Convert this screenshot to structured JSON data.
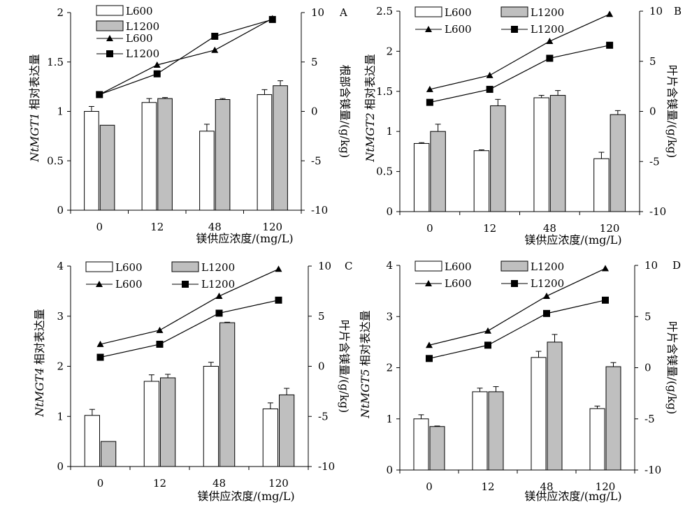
{
  "x_axis_title": "镁供应浓度/(mg/L)",
  "chart_data": [
    {
      "type": "bar",
      "panel_letter": "A",
      "categories": [
        "0",
        "12",
        "48",
        "120"
      ],
      "ylabel_gene": "NtMGT1",
      "ylabel_suffix": "相对表达量",
      "y2label": "根部含镁量/(g/kg)",
      "ylim": [
        0,
        2
      ],
      "yticks": [
        "0",
        "0.5",
        "1",
        "1.5",
        "2"
      ],
      "y2lim": [
        -10,
        10
      ],
      "y2ticks": [
        "-10",
        "-5",
        "0",
        "5",
        "10"
      ],
      "bars": [
        {
          "name": "L600",
          "values": [
            1.0,
            1.09,
            0.8,
            1.17
          ],
          "errors": [
            0.05,
            0.04,
            0.07,
            0.05
          ]
        },
        {
          "name": "L1200",
          "values": [
            0.86,
            1.13,
            1.12,
            1.26
          ],
          "errors": [
            0.0,
            0.01,
            0.01,
            0.05
          ]
        }
      ],
      "lines": [
        {
          "name": "L600",
          "marker": "triangle",
          "values": [
            1.7,
            4.7,
            6.2,
            9.4
          ]
        },
        {
          "name": "L1200",
          "marker": "square",
          "values": [
            1.7,
            3.8,
            7.6,
            9.3
          ]
        }
      ]
    },
    {
      "type": "bar",
      "panel_letter": "B",
      "categories": [
        "0",
        "12",
        "48",
        "120"
      ],
      "ylabel_gene": "NtMGT2",
      "ylabel_suffix": "相对表达量",
      "y2label": "叶片含镁量/(g/kg)",
      "ylim": [
        0,
        2.5
      ],
      "yticks": [
        "0",
        "0.5",
        "1",
        "1.5",
        "2",
        "2.5"
      ],
      "y2lim": [
        -10,
        10
      ],
      "y2ticks": [
        "-10",
        "-5",
        "0",
        "5",
        "10"
      ],
      "bars": [
        {
          "name": "L600",
          "values": [
            0.85,
            0.76,
            1.42,
            0.66
          ],
          "errors": [
            0.01,
            0.01,
            0.03,
            0.08
          ]
        },
        {
          "name": "L1200",
          "values": [
            1.0,
            1.32,
            1.45,
            1.21
          ],
          "errors": [
            0.09,
            0.08,
            0.06,
            0.05
          ]
        }
      ],
      "lines": [
        {
          "name": "L600",
          "marker": "triangle",
          "values": [
            2.2,
            3.6,
            7.0,
            9.7
          ]
        },
        {
          "name": "L1200",
          "marker": "square",
          "values": [
            0.9,
            2.2,
            5.3,
            6.6
          ]
        }
      ]
    },
    {
      "type": "bar",
      "panel_letter": "C",
      "categories": [
        "0",
        "12",
        "48",
        "120"
      ],
      "ylabel_gene": "NtMGT4",
      "ylabel_suffix": "相对表达量",
      "y2label": "叶片含镁量/(g/kg)",
      "ylim": [
        0,
        4
      ],
      "yticks": [
        "0",
        "1",
        "2",
        "3",
        "4"
      ],
      "y2lim": [
        -10,
        10
      ],
      "y2ticks": [
        "-10",
        "-5",
        "0",
        "5",
        "10"
      ],
      "bars": [
        {
          "name": "L600",
          "values": [
            1.02,
            1.7,
            2.0,
            1.15
          ],
          "errors": [
            0.12,
            0.13,
            0.08,
            0.12
          ]
        },
        {
          "name": "L1200",
          "values": [
            0.5,
            1.77,
            2.87,
            1.43
          ],
          "errors": [
            0.0,
            0.07,
            0.01,
            0.13
          ]
        }
      ],
      "lines": [
        {
          "name": "L600",
          "marker": "triangle",
          "values": [
            2.2,
            3.6,
            7.0,
            9.7
          ]
        },
        {
          "name": "L1200",
          "marker": "square",
          "values": [
            0.9,
            2.2,
            5.3,
            6.6
          ]
        }
      ]
    },
    {
      "type": "bar",
      "panel_letter": "D",
      "categories": [
        "0",
        "12",
        "48",
        "120"
      ],
      "ylabel_gene": "NtMGT5",
      "ylabel_suffix": "相对表达量",
      "y2label": "叶片含镁量/(g/kg)",
      "ylim": [
        0,
        4
      ],
      "yticks": [
        "0",
        "1",
        "2",
        "3",
        "4"
      ],
      "y2lim": [
        -10,
        10
      ],
      "y2ticks": [
        "-10",
        "-5",
        "0",
        "5",
        "10"
      ],
      "bars": [
        {
          "name": "L600",
          "values": [
            1.0,
            1.53,
            2.2,
            1.2
          ],
          "errors": [
            0.08,
            0.07,
            0.12,
            0.05
          ]
        },
        {
          "name": "L1200",
          "values": [
            0.85,
            1.53,
            2.5,
            2.02
          ],
          "errors": [
            0.01,
            0.1,
            0.15,
            0.08
          ]
        }
      ],
      "lines": [
        {
          "name": "L600",
          "marker": "triangle",
          "values": [
            2.2,
            3.6,
            7.0,
            9.7
          ]
        },
        {
          "name": "L1200",
          "marker": "square",
          "values": [
            0.9,
            2.2,
            5.3,
            6.6
          ]
        }
      ]
    }
  ],
  "colors": {
    "bar_L600": "#ffffff",
    "bar_L1200": "#bfbfbf",
    "stroke": "#000000"
  }
}
